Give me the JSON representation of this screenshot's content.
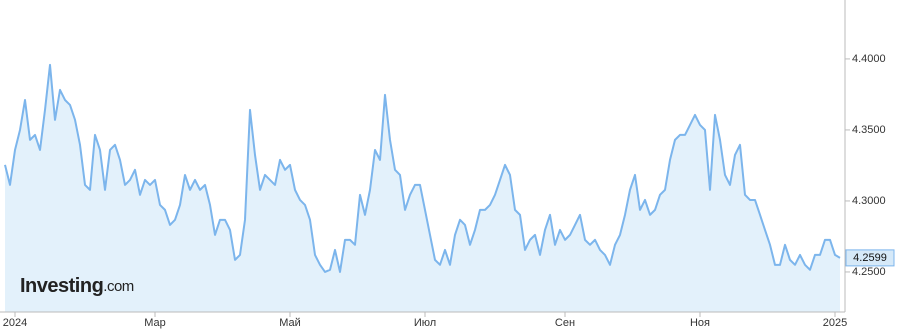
{
  "chart_data": {
    "type": "area",
    "watermark": {
      "brand": "Investing",
      "suffix": ".com"
    },
    "categories": [
      null,
      null,
      "2024",
      null,
      null,
      null,
      null,
      null,
      null,
      null,
      null,
      null,
      null,
      null,
      null,
      null,
      null,
      null,
      null,
      null,
      null,
      null,
      null,
      null,
      null,
      null,
      null,
      null,
      null,
      null,
      "Мар",
      null,
      null,
      null,
      null,
      null,
      null,
      null,
      null,
      null,
      null,
      null,
      null,
      null,
      null,
      null,
      null,
      null,
      null,
      null,
      null,
      null,
      null,
      null,
      null,
      null,
      null,
      "Май",
      null,
      null,
      null,
      null,
      null,
      null,
      null,
      null,
      null,
      null,
      null,
      null,
      null,
      null,
      null,
      null,
      null,
      null,
      null,
      null,
      null,
      null,
      null,
      null,
      null,
      null,
      "Июл",
      null,
      null,
      null,
      null,
      null,
      null,
      null,
      null,
      null,
      null,
      null,
      null,
      null,
      null,
      null,
      null,
      null,
      null,
      null,
      null,
      null,
      null,
      null,
      null,
      null,
      null,
      null,
      "Сен",
      null,
      null,
      null,
      null,
      null,
      null,
      null,
      null,
      null,
      null,
      null,
      null,
      null,
      null,
      null,
      null,
      null,
      null,
      null,
      null,
      null,
      null,
      null,
      null,
      null,
      null,
      "Ноя",
      null,
      null,
      null,
      null,
      null,
      null,
      null,
      null,
      null,
      null,
      null,
      null,
      null,
      null,
      null,
      null,
      null,
      null,
      null,
      null,
      null,
      null,
      null,
      null,
      null,
      null,
      "2025",
      null
    ],
    "values": [
      4.3254,
      4.3113,
      4.3359,
      4.35,
      4.3711,
      4.343,
      4.3465,
      4.3359,
      4.3641,
      4.3958,
      4.3571,
      4.3782,
      4.3711,
      4.3676,
      4.3571,
      4.3395,
      4.3113,
      4.3078,
      4.3465,
      4.3359,
      4.3078,
      4.3359,
      4.3395,
      4.3289,
      4.3113,
      4.3148,
      4.3219,
      4.3043,
      4.3148,
      4.3113,
      4.3148,
      4.2972,
      4.2937,
      4.2831,
      4.2867,
      4.2972,
      4.3183,
      4.3078,
      4.3148,
      4.3078,
      4.3113,
      4.2972,
      4.2761,
      4.2867,
      4.2867,
      4.2796,
      4.2585,
      4.262,
      4.2867,
      4.3641,
      4.3324,
      4.3078,
      4.3183,
      4.3148,
      4.3113,
      4.3289,
      4.3219,
      4.3254,
      4.3078,
      4.3007,
      4.2972,
      4.2867,
      4.262,
      4.255,
      4.25,
      4.2515,
      4.2655,
      4.25,
      4.2726,
      4.2726,
      4.2691,
      4.3043,
      4.2902,
      4.3078,
      4.3359,
      4.3289,
      4.3747,
      4.343,
      4.3219,
      4.3183,
      4.2937,
      4.3043,
      4.3113,
      4.3113,
      4.2937,
      4.2761,
      4.2585,
      4.255,
      4.2655,
      4.255,
      4.2761,
      4.2867,
      4.2831,
      4.2691,
      4.2796,
      4.2937,
      4.2937,
      4.2972,
      4.3043,
      4.3148,
      4.3254,
      4.3183,
      4.2937,
      4.2902,
      4.2655,
      4.2726,
      4.2761,
      4.262,
      4.2796,
      4.2902,
      4.2691,
      4.2796,
      4.2726,
      4.2761,
      4.2831,
      4.2902,
      4.2726,
      4.2691,
      4.2726,
      4.2655,
      4.262,
      4.255,
      4.2691,
      4.2761,
      4.2902,
      4.3078,
      4.3183,
      4.2937,
      4.3007,
      4.2902,
      4.2937,
      4.3043,
      4.3078,
      4.3289,
      4.343,
      4.3465,
      4.3465,
      4.3535,
      4.3606,
      4.3535,
      4.35,
      4.3078,
      4.3606,
      4.343,
      4.3183,
      4.3113,
      4.3324,
      4.3395,
      4.3043,
      4.3007,
      4.3007,
      4.2902,
      4.2796,
      4.2691,
      4.255,
      4.255,
      4.2691,
      4.2585,
      4.255,
      4.262,
      4.255,
      4.2515,
      4.262,
      4.262,
      4.2726,
      4.2726,
      4.262,
      4.2599
    ],
    "last_value": 4.2599,
    "color": "#7cb5ec",
    "fill": "#e3f1fb",
    "ylim": [
      4.2218,
      4.4415
    ],
    "yticks": [
      {
        "value": 4.25,
        "label": "4.2500"
      },
      {
        "value": 4.3,
        "label": "4.3000"
      },
      {
        "value": 4.35,
        "label": "4.3500"
      },
      {
        "value": 4.4,
        "label": "4.4000"
      }
    ],
    "grid": false
  }
}
